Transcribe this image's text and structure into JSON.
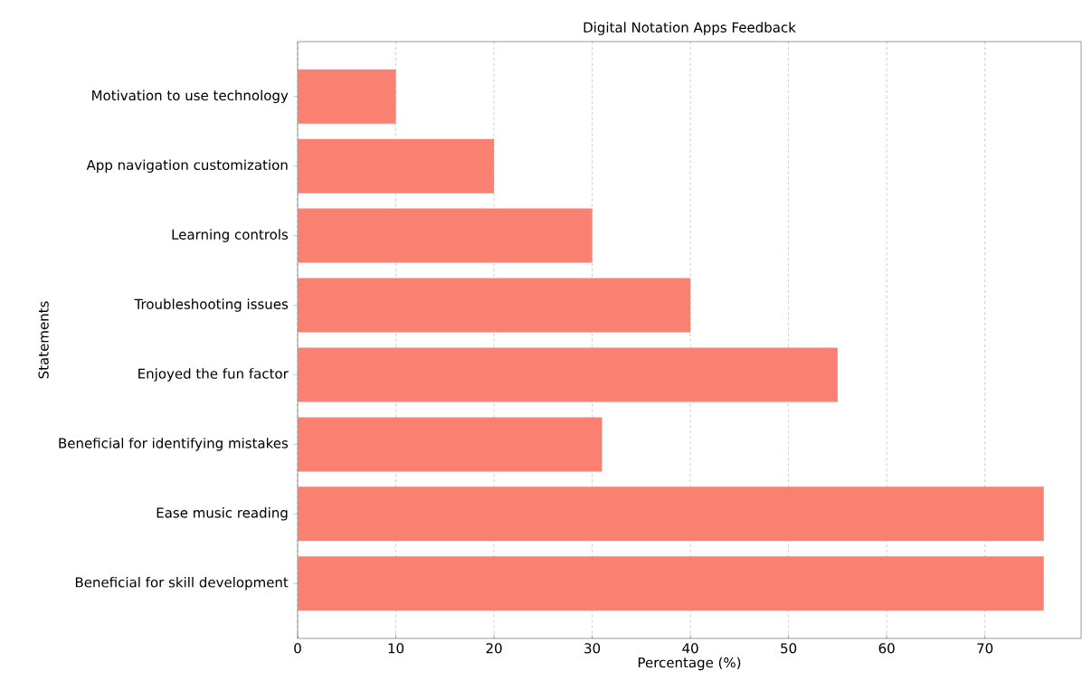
{
  "chart_data": {
    "type": "bar",
    "orientation": "horizontal",
    "title": "Digital Notation Apps Feedback",
    "xlabel": "Percentage (%)",
    "ylabel": "Statements",
    "categories": [
      "Motivation to use technology",
      "App navigation customization",
      "Learning controls",
      "Troubleshooting issues",
      "Enjoyed the fun factor",
      "Beneficial for identifying mistakes",
      "Ease music reading",
      "Beneficial for skill development"
    ],
    "values": [
      10,
      20,
      30,
      40,
      55,
      31,
      76,
      76
    ],
    "color": "#fa8072",
    "xlim": [
      0,
      79.8
    ],
    "xticks": [
      0,
      10,
      20,
      30,
      40,
      50,
      60,
      70
    ],
    "grid": "x"
  }
}
